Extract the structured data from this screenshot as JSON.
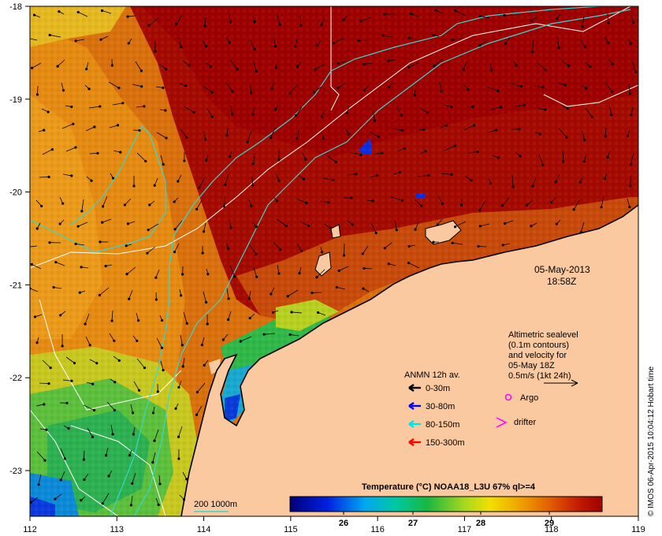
{
  "map": {
    "xaxis": {
      "ticks": [
        "112",
        "113",
        "114",
        "115",
        "116",
        "117",
        "118",
        "119"
      ]
    },
    "yaxis": {
      "ticks": [
        "-18",
        "-19",
        "-20",
        "-21",
        "-22",
        "-23"
      ]
    },
    "date_label": "05-May-2013",
    "time_label": "18:58Z",
    "altimetry_note": [
      "Altimetric sealevel",
      "(0.1m contours)",
      "and velocity for",
      "05-May 18Z",
      "0.5m/s (1kt 24h)"
    ],
    "mooring_legend": {
      "title": "ANMN 12h av.",
      "items": [
        {
          "label": "0-30m",
          "color": "#000000"
        },
        {
          "label": "30-80m",
          "color": "#0000ff"
        },
        {
          "label": "80-150m",
          "color": "#00e5e5"
        },
        {
          "label": "150-300m",
          "color": "#ff0000"
        }
      ]
    },
    "argo_label": "Argo",
    "drifter_label": "drifter",
    "isobath_label": "200  1000m",
    "colorbar": {
      "title": "Temperature (°C) NOAA18_L3U 67% ql>=4",
      "labels": [
        "26",
        "27",
        "28",
        "29"
      ]
    },
    "credit": "© IMOS 06-Apr-2015 10:04:12 Hobart time",
    "colors": {
      "land": "#fbc9a0",
      "hot": "#a80000",
      "warm": "#d86e0a",
      "cool": "#2ab04e",
      "cold": "#0a2fe0",
      "isobath": "#34d8d0",
      "contour": "#ffffff",
      "argo": "#ff00ff"
    }
  }
}
